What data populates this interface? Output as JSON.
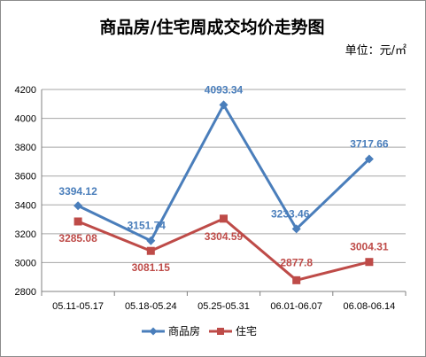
{
  "chart_data": {
    "type": "line",
    "title": "商品房/住宅周成交均价走势图",
    "unit_label": "单位：元/㎡",
    "categories": [
      "05.11-05.17",
      "05.18-05.24",
      "05.25-05.31",
      "06.01-06.07",
      "06.08-06.14"
    ],
    "series": [
      {
        "name": "商品房",
        "color": "#4a7ebb",
        "marker": "diamond",
        "values": [
          3394.12,
          3151.74,
          4093.34,
          3233.46,
          3717.66
        ],
        "labels": [
          "3394.12",
          "3151.74",
          "4093.34",
          "3233.46",
          "3717.66"
        ]
      },
      {
        "name": "住宅",
        "color": "#be4b48",
        "marker": "square",
        "values": [
          3285.08,
          3081.15,
          3304.59,
          2877.8,
          3004.31
        ],
        "labels": [
          "3285.08",
          "3081.15",
          "3304.59",
          "2877.8",
          "3004.31"
        ]
      }
    ],
    "ylim": [
      2800,
      4200
    ],
    "yticks": [
      "2800",
      "3000",
      "3200",
      "3400",
      "3600",
      "3800",
      "4000",
      "4200"
    ],
    "grid": true,
    "legend": "bottom"
  }
}
